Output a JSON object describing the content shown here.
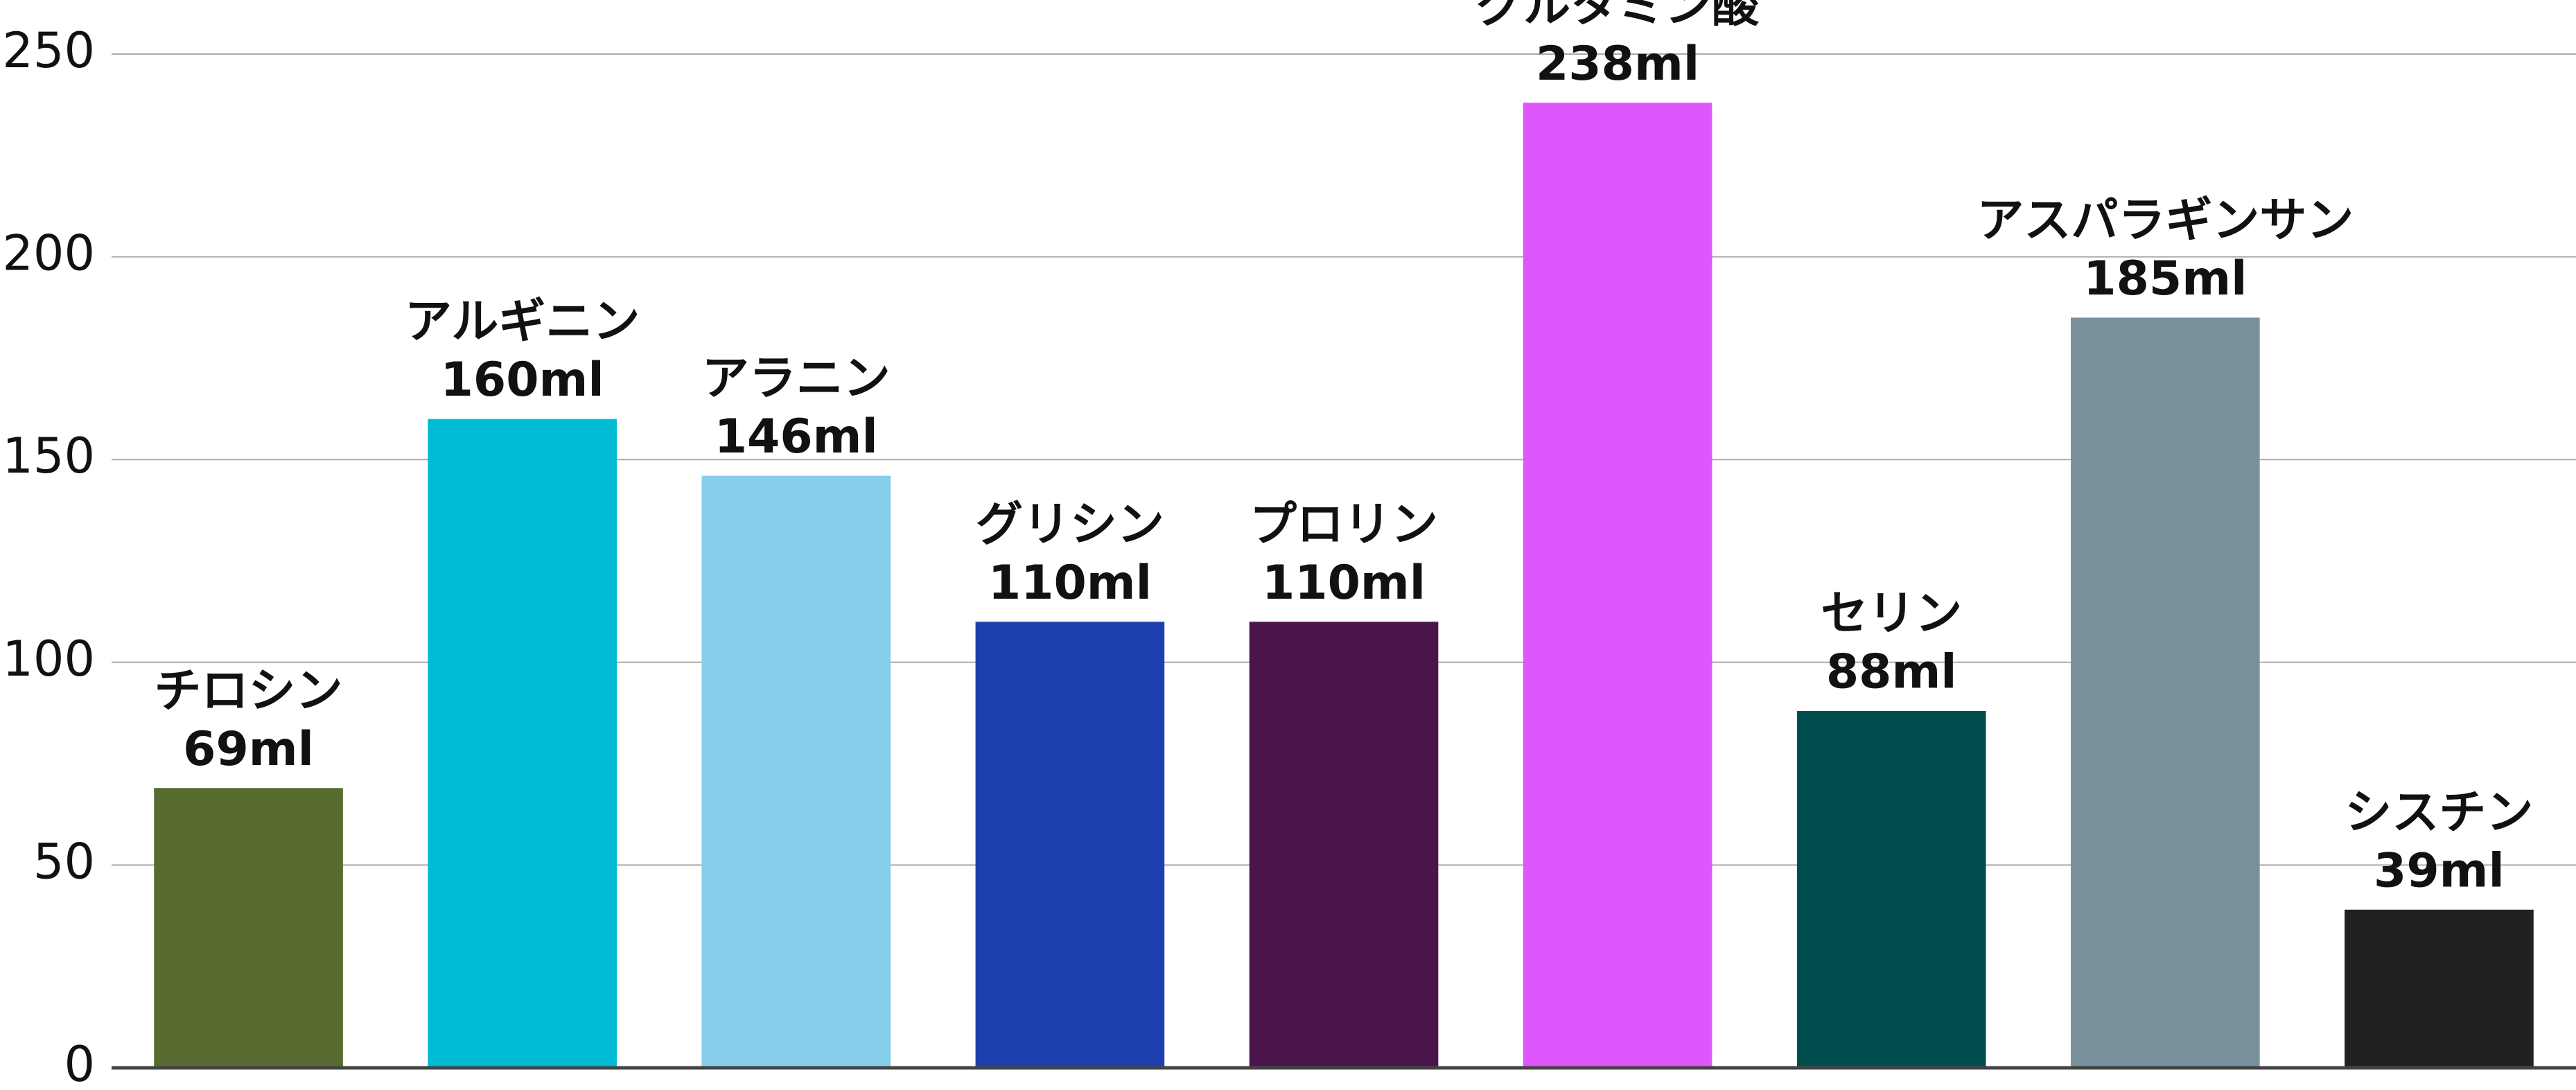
{
  "chart_data": {
    "type": "bar",
    "categories": [
      "チロシン",
      "アルギニン",
      "アラニン",
      "グリシン",
      "プロリン",
      "グルタミン酸",
      "セリン",
      "アスパラギンサン",
      "シスチン"
    ],
    "values": [
      69,
      160,
      146,
      110,
      110,
      238,
      88,
      185,
      39
    ],
    "value_labels": [
      "69ml",
      "160ml",
      "146ml",
      "110ml",
      "110ml",
      "238ml",
      "88ml",
      "185ml",
      "39ml"
    ],
    "colors": [
      "#586b30",
      "#00bcd4",
      "#87ceeb",
      "#1e40af",
      "#4a154b",
      "#e056fd",
      "#004d4d",
      "#78909c",
      "#212121"
    ],
    "ylim": [
      0,
      250
    ],
    "yticks": [
      0,
      50,
      100,
      150,
      200,
      250
    ],
    "grid": true
  }
}
